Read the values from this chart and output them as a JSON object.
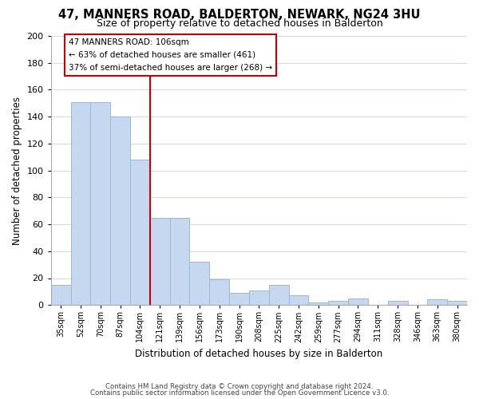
{
  "title": "47, MANNERS ROAD, BALDERTON, NEWARK, NG24 3HU",
  "subtitle": "Size of property relative to detached houses in Balderton",
  "xlabel": "Distribution of detached houses by size in Balderton",
  "ylabel": "Number of detached properties",
  "categories": [
    "35sqm",
    "52sqm",
    "70sqm",
    "87sqm",
    "104sqm",
    "121sqm",
    "139sqm",
    "156sqm",
    "173sqm",
    "190sqm",
    "208sqm",
    "225sqm",
    "242sqm",
    "259sqm",
    "277sqm",
    "294sqm",
    "311sqm",
    "328sqm",
    "346sqm",
    "363sqm",
    "380sqm"
  ],
  "values": [
    15,
    151,
    151,
    140,
    108,
    65,
    65,
    32,
    19,
    9,
    11,
    15,
    7,
    2,
    3,
    5,
    0,
    3,
    0,
    4,
    3
  ],
  "bar_color": "#c5d8f0",
  "bar_edge_color": "#9ab8d8",
  "vline_x": 4.5,
  "vline_color": "#cc0000",
  "annotation_title": "47 MANNERS ROAD: 106sqm",
  "annotation_line1": "← 63% of detached houses are smaller (461)",
  "annotation_line2": "37% of semi-detached houses are larger (268) →",
  "annotation_box_color": "#ffffff",
  "annotation_box_edge": "#cc0000",
  "ylim": [
    0,
    200
  ],
  "yticks": [
    0,
    20,
    40,
    60,
    80,
    100,
    120,
    140,
    160,
    180,
    200
  ],
  "footer1": "Contains HM Land Registry data © Crown copyright and database right 2024.",
  "footer2": "Contains public sector information licensed under the Open Government Licence v3.0.",
  "background_color": "#ffffff",
  "grid_color": "#d0daea"
}
